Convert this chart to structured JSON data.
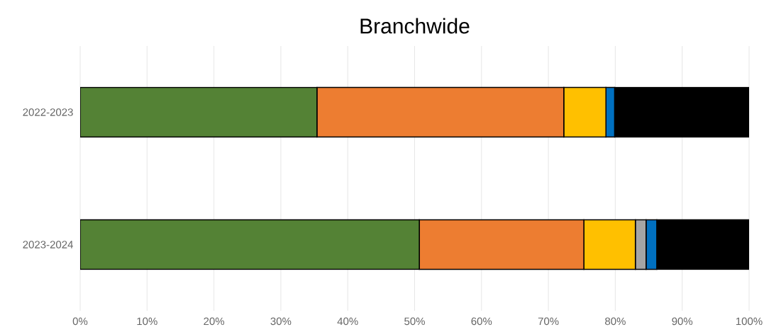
{
  "chart_data": {
    "type": "bar",
    "title": "Branchwide",
    "orientation": "horizontal",
    "stacked": true,
    "categories": [
      "2022-2023",
      "2023-2024"
    ],
    "series": [
      {
        "color": "#548235",
        "values": [
          35.4,
          50.7
        ]
      },
      {
        "color": "#ed7d31",
        "values": [
          36.9,
          24.6
        ]
      },
      {
        "color": "#ffc000",
        "values": [
          6.3,
          7.7
        ]
      },
      {
        "color": "#a5a5a5",
        "values": [
          null,
          1.6
        ]
      },
      {
        "color": "#0070c0",
        "values": [
          1.3,
          1.6
        ]
      },
      {
        "color": "#000000",
        "values": [
          20.1,
          13.8
        ]
      }
    ],
    "xlim": [
      0,
      100
    ],
    "xticks": [
      {
        "value": 0,
        "label": "0%"
      },
      {
        "value": 10,
        "label": "10%"
      },
      {
        "value": 20,
        "label": "20%"
      },
      {
        "value": 30,
        "label": "30%"
      },
      {
        "value": 40,
        "label": "40%"
      },
      {
        "value": 50,
        "label": "50%"
      },
      {
        "value": 60,
        "label": "60%"
      },
      {
        "value": 70,
        "label": "70%"
      },
      {
        "value": 80,
        "label": "80%"
      },
      {
        "value": 90,
        "label": "90%"
      },
      {
        "value": 100,
        "label": "100%"
      }
    ],
    "grid": "x"
  }
}
